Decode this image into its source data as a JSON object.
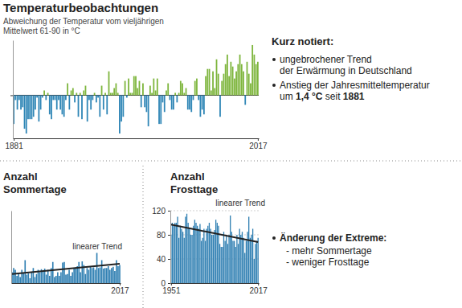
{
  "title": "Temperaturbeobachtungen",
  "notes": {
    "heading": "Kurz notiert:",
    "items": [
      {
        "lines": [
          [
            {
              "text": "ungebrochener Trend"
            }
          ],
          [
            {
              "text": "der Erwärmung in Deutschland"
            }
          ]
        ]
      },
      {
        "lines": [
          [
            {
              "text": "Anstieg der Jahresmitteltemperatur"
            }
          ],
          [
            {
              "text": "um "
            },
            {
              "text": "1,4 °C",
              "strong": true
            },
            {
              "text": " seit "
            },
            {
              "text": "1881",
              "strong": true
            }
          ]
        ]
      }
    ]
  },
  "extremes": {
    "heading": "Änderung der Extreme:",
    "items": [
      "- mehr Sommertage",
      "- weniger Frosttage"
    ]
  },
  "chart_data": [
    {
      "type": "bar",
      "subtitle": "Abweichung der Temperatur vom vieljährigen\nMittelwert 61-90 in °C",
      "x": [
        1881,
        1882,
        1883,
        1884,
        1885,
        1886,
        1887,
        1888,
        1889,
        1890,
        1891,
        1892,
        1893,
        1894,
        1895,
        1896,
        1897,
        1898,
        1899,
        1900,
        1901,
        1902,
        1903,
        1904,
        1905,
        1906,
        1907,
        1908,
        1909,
        1910,
        1911,
        1912,
        1913,
        1914,
        1915,
        1916,
        1917,
        1918,
        1919,
        1920,
        1921,
        1922,
        1923,
        1924,
        1925,
        1926,
        1927,
        1928,
        1929,
        1930,
        1931,
        1932,
        1933,
        1934,
        1935,
        1936,
        1937,
        1938,
        1939,
        1940,
        1941,
        1942,
        1943,
        1944,
        1945,
        1946,
        1947,
        1948,
        1949,
        1950,
        1951,
        1952,
        1953,
        1954,
        1955,
        1956,
        1957,
        1958,
        1959,
        1960,
        1961,
        1962,
        1963,
        1964,
        1965,
        1966,
        1967,
        1968,
        1969,
        1970,
        1971,
        1972,
        1973,
        1974,
        1975,
        1976,
        1977,
        1978,
        1979,
        1980,
        1981,
        1982,
        1983,
        1984,
        1985,
        1986,
        1987,
        1988,
        1989,
        1990,
        1991,
        1992,
        1993,
        1994,
        1995,
        1996,
        1997,
        1998,
        1999,
        2000,
        2001,
        2002,
        2003,
        2004,
        2005,
        2006,
        2007,
        2008,
        2009,
        2010,
        2011,
        2012,
        2013,
        2014,
        2015,
        2016,
        2017
      ],
      "values": [
        -1.2,
        -0.2,
        -0.6,
        -0.2,
        -0.6,
        -0.5,
        -1.4,
        -1.6,
        -1.0,
        -1.0,
        -1.0,
        -0.9,
        -0.6,
        -0.1,
        -1.1,
        -0.6,
        -0.1,
        0.2,
        -0.2,
        0.1,
        -0.8,
        -1.0,
        -0.2,
        -0.2,
        -0.6,
        -0.2,
        -0.6,
        -0.8,
        -0.9,
        -0.2,
        0.5,
        -0.6,
        0.2,
        0.3,
        -0.3,
        0.1,
        -0.9,
        0.1,
        -1.0,
        0.2,
        0.4,
        -1.1,
        -0.2,
        -0.6,
        -0.2,
        0.1,
        -0.3,
        -0.1,
        -0.9,
        0.4,
        -0.6,
        0.1,
        -0.8,
        1.0,
        0.1,
        0.1,
        0.3,
        0.5,
        0.1,
        -1.6,
        -1.1,
        -0.9,
        0.6,
        -0.1,
        0.7,
        0.1,
        0.1,
        0.8,
        0.8,
        0.3,
        0.6,
        -0.5,
        0.5,
        -0.5,
        -0.7,
        -1.3,
        0.4,
        0.1,
        0.7,
        0.2,
        0.7,
        -1.2,
        -1.2,
        -0.3,
        -0.7,
        0.2,
        0.5,
        -0.2,
        -0.6,
        -0.6,
        0.1,
        -0.3,
        0.1,
        0.6,
        0.5,
        0.1,
        0.3,
        -0.6,
        -0.6,
        -0.7,
        -0.2,
        0.6,
        0.7,
        -0.2,
        -0.9,
        -0.6,
        -0.8,
        0.8,
        1.1,
        1.1,
        0.2,
        1.0,
        0.3,
        1.5,
        0.9,
        -0.9,
        0.6,
        0.9,
        1.3,
        1.7,
        0.8,
        1.4,
        1.2,
        0.7,
        1.0,
        1.3,
        1.7,
        1.3,
        1.0,
        -0.4,
        1.4,
        0.9,
        0.5,
        2.1,
        1.7,
        1.3,
        1.4
      ],
      "colors": [
        "#2f86b6",
        "#2f86b6",
        "#2f86b6",
        "#2f86b6",
        "#2f86b6",
        "#2f86b6",
        "#2f86b6",
        "#2f86b6",
        "#2f86b6",
        "#2f86b6",
        "#2f86b6",
        "#2f86b6",
        "#2f86b6",
        "#2f86b6",
        "#2f86b6",
        "#2f86b6",
        "#2f86b6",
        "#7db53c",
        "#2f86b6",
        "#7db53c",
        "#2f86b6",
        "#2f86b6",
        "#2f86b6",
        "#2f86b6",
        "#2f86b6",
        "#2f86b6",
        "#2f86b6",
        "#2f86b6",
        "#2f86b6",
        "#2f86b6",
        "#7db53c",
        "#2f86b6",
        "#7db53c",
        "#7db53c",
        "#2f86b6",
        "#7db53c",
        "#2f86b6",
        "#7db53c",
        "#2f86b6",
        "#7db53c",
        "#7db53c",
        "#2f86b6",
        "#2f86b6",
        "#2f86b6",
        "#2f86b6",
        "#7db53c",
        "#2f86b6",
        "#2f86b6",
        "#2f86b6",
        "#7db53c",
        "#2f86b6",
        "#7db53c",
        "#2f86b6",
        "#7db53c",
        "#7db53c",
        "#7db53c",
        "#7db53c",
        "#7db53c",
        "#7db53c",
        "#2f86b6",
        "#2f86b6",
        "#2f86b6",
        "#7db53c",
        "#2f86b6",
        "#7db53c",
        "#7db53c",
        "#7db53c",
        "#7db53c",
        "#7db53c",
        "#7db53c",
        "#7db53c",
        "#2f86b6",
        "#7db53c",
        "#2f86b6",
        "#2f86b6",
        "#2f86b6",
        "#7db53c",
        "#7db53c",
        "#7db53c",
        "#7db53c",
        "#7db53c",
        "#2f86b6",
        "#2f86b6",
        "#2f86b6",
        "#2f86b6",
        "#7db53c",
        "#7db53c",
        "#2f86b6",
        "#2f86b6",
        "#2f86b6",
        "#7db53c",
        "#2f86b6",
        "#7db53c",
        "#7db53c",
        "#7db53c",
        "#7db53c",
        "#7db53c",
        "#2f86b6",
        "#2f86b6",
        "#2f86b6",
        "#2f86b6",
        "#7db53c",
        "#7db53c",
        "#2f86b6",
        "#2f86b6",
        "#2f86b6",
        "#2f86b6",
        "#7db53c",
        "#7db53c",
        "#7db53c",
        "#7db53c",
        "#7db53c",
        "#7db53c",
        "#7db53c",
        "#7db53c",
        "#2f86b6",
        "#7db53c",
        "#7db53c",
        "#7db53c",
        "#7db53c",
        "#7db53c",
        "#7db53c",
        "#7db53c",
        "#7db53c",
        "#7db53c",
        "#7db53c",
        "#7db53c",
        "#7db53c",
        "#7db53c",
        "#2f86b6",
        "#7db53c",
        "#7db53c",
        "#7db53c",
        "#7db53c",
        "#7db53c",
        "#7db53c",
        "#7db53c"
      ],
      "xlim": [
        1880.5,
        2017.5
      ],
      "xticks": [
        1881,
        2017
      ],
      "ylim": [
        -1.8,
        2.3
      ],
      "yticks": [
        0
      ],
      "grid": true,
      "tick_labels": "x"
    },
    {
      "type": "bar",
      "title": "Anzahl\nSommertage",
      "x": [
        1951,
        1952,
        1953,
        1954,
        1955,
        1956,
        1957,
        1958,
        1959,
        1960,
        1961,
        1962,
        1963,
        1964,
        1965,
        1966,
        1967,
        1968,
        1969,
        1970,
        1971,
        1972,
        1973,
        1974,
        1975,
        1976,
        1977,
        1978,
        1979,
        1980,
        1981,
        1982,
        1983,
        1984,
        1985,
        1986,
        1987,
        1988,
        1989,
        1990,
        1991,
        1992,
        1993,
        1994,
        1995,
        1996,
        1997,
        1998,
        1999,
        2000,
        2001,
        2002,
        2003,
        2004,
        2005,
        2006,
        2007,
        2008,
        2009,
        2010,
        2011,
        2012,
        2013,
        2014,
        2015,
        2016,
        2017
      ],
      "values": [
        18,
        25,
        22,
        12,
        15,
        10,
        22,
        16,
        38,
        14,
        16,
        8,
        18,
        25,
        10,
        15,
        22,
        18,
        23,
        20,
        24,
        14,
        22,
        12,
        25,
        35,
        10,
        12,
        18,
        12,
        18,
        34,
        35,
        14,
        15,
        22,
        12,
        18,
        25,
        26,
        28,
        35,
        18,
        36,
        30,
        15,
        25,
        22,
        28,
        25,
        26,
        22,
        50,
        25,
        26,
        38,
        24,
        25,
        25,
        28,
        22,
        25,
        27,
        20,
        38,
        28,
        30
      ],
      "color": "#2f7fb2",
      "xlim": [
        1950.5,
        2017.5
      ],
      "xticks": [
        2017
      ],
      "ylim": [
        0,
        120
      ],
      "yticks": [],
      "tick_labels": "x",
      "trend": {
        "label": "linearer Trend",
        "x": [
          1951,
          2017
        ],
        "values": [
          15,
          32
        ]
      }
    },
    {
      "type": "bar",
      "title": "Anzahl\nFrosttage",
      "x": [
        1951,
        1952,
        1953,
        1954,
        1955,
        1956,
        1957,
        1958,
        1959,
        1960,
        1961,
        1962,
        1963,
        1964,
        1965,
        1966,
        1967,
        1968,
        1969,
        1970,
        1971,
        1972,
        1973,
        1974,
        1975,
        1976,
        1977,
        1978,
        1979,
        1980,
        1981,
        1982,
        1983,
        1984,
        1985,
        1986,
        1987,
        1988,
        1989,
        1990,
        1991,
        1992,
        1993,
        1994,
        1995,
        1996,
        1997,
        1998,
        1999,
        2000,
        2001,
        2002,
        2003,
        2004,
        2005,
        2006,
        2007,
        2008,
        2009,
        2010,
        2011,
        2012,
        2013,
        2014,
        2015,
        2016,
        2017
      ],
      "values": [
        80,
        100,
        95,
        100,
        100,
        110,
        75,
        95,
        90,
        85,
        75,
        110,
        115,
        100,
        92,
        80,
        80,
        95,
        105,
        100,
        95,
        90,
        98,
        70,
        75,
        90,
        70,
        90,
        95,
        100,
        90,
        80,
        80,
        88,
        105,
        100,
        95,
        65,
        60,
        60,
        85,
        70,
        80,
        65,
        80,
        112,
        85,
        70,
        70,
        60,
        80,
        65,
        90,
        80,
        85,
        75,
        50,
        70,
        85,
        110,
        75,
        80,
        90,
        40,
        65,
        70,
        75
      ],
      "color": "#2f7fb2",
      "xlim": [
        1950.5,
        2017.5
      ],
      "xticks": [
        1951,
        2017
      ],
      "ylim": [
        0,
        120
      ],
      "yticks": [
        0,
        40,
        80,
        120
      ],
      "grid": true,
      "trend": {
        "label": "linearer Trend",
        "x": [
          1951,
          2017
        ],
        "values": [
          97,
          68
        ]
      }
    }
  ]
}
